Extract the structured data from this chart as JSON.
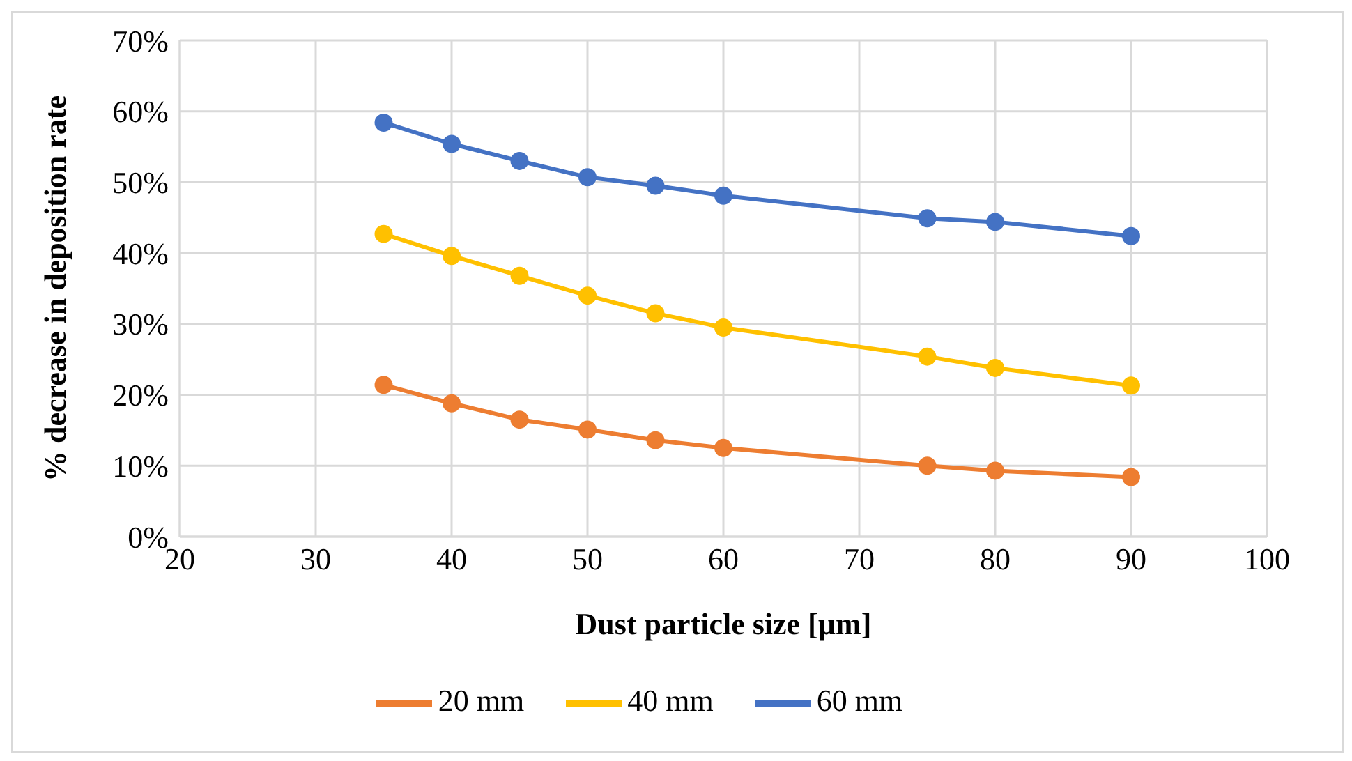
{
  "chart_data": {
    "type": "line",
    "xlabel": "Dust particle size [µm]",
    "ylabel": "% decrease in deposition rate",
    "x": [
      35,
      40,
      45,
      50,
      55,
      60,
      75,
      80,
      90
    ],
    "series": [
      {
        "name": "20 mm",
        "color": "#ed7d31",
        "values": [
          21.4,
          18.8,
          16.5,
          15.1,
          13.6,
          12.5,
          10.0,
          9.3,
          8.4
        ]
      },
      {
        "name": "40 mm",
        "color": "#ffc000",
        "values": [
          42.7,
          39.6,
          36.8,
          34.0,
          31.5,
          29.5,
          25.4,
          23.8,
          21.3
        ]
      },
      {
        "name": "60 mm",
        "color": "#4472c4",
        "values": [
          58.4,
          55.4,
          53.0,
          50.7,
          49.5,
          48.1,
          44.9,
          44.4,
          42.4
        ]
      }
    ],
    "xlim": [
      20,
      100
    ],
    "xticks": [
      20,
      30,
      40,
      50,
      60,
      70,
      80,
      90,
      100
    ],
    "ylim": [
      0,
      70
    ],
    "yticks": [
      {
        "value": 0,
        "label": "0%"
      },
      {
        "value": 10,
        "label": "10%"
      },
      {
        "value": 20,
        "label": "20%"
      },
      {
        "value": 30,
        "label": "30%"
      },
      {
        "value": 40,
        "label": "40%"
      },
      {
        "value": 50,
        "label": "50%"
      },
      {
        "value": 60,
        "label": "60%"
      },
      {
        "value": 70,
        "label": "70%"
      }
    ],
    "grid": true,
    "legend": "bottom",
    "marker": "circle",
    "line_style": "solid"
  }
}
